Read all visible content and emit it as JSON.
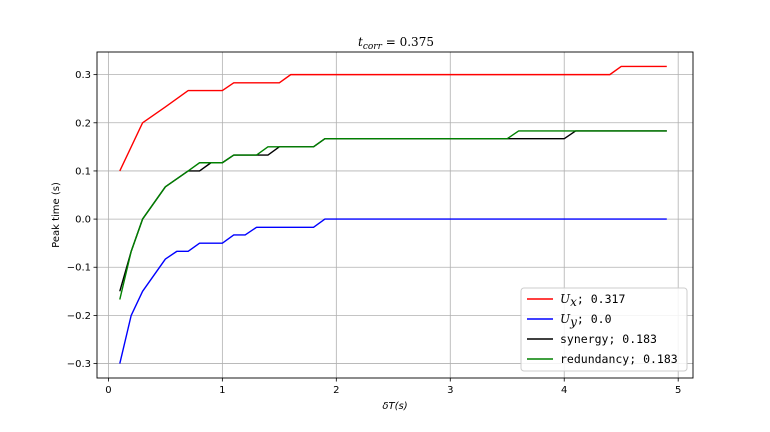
{
  "chart_data": {
    "type": "line",
    "title": "t_corr = 0.375",
    "title_main": "t",
    "title_sub": "corr",
    "title_rest": " = 0.375",
    "xlabel": "δT(s)",
    "ylabel": "Peak time (s)",
    "xlim": [
      -0.1,
      5.13
    ],
    "ylim": [
      -0.33,
      0.347
    ],
    "xticks": [
      0,
      1,
      2,
      3,
      4,
      5
    ],
    "yticks": [
      -0.3,
      -0.2,
      -0.1,
      0.0,
      0.1,
      0.2,
      0.3
    ],
    "xtick_labels": [
      "0",
      "1",
      "2",
      "3",
      "4",
      "5"
    ],
    "ytick_labels": [
      "−0.3",
      "−0.2",
      "−0.1",
      "0.0",
      "0.1",
      "0.2",
      "0.3"
    ],
    "grid": true,
    "legend_position": "lower-right",
    "series": [
      {
        "name": "U_x; 0.317",
        "legend_main": "U",
        "legend_sub": "x",
        "legend_rest": ";  0.317",
        "color": "#ff0000",
        "points": [
          [
            0.1,
            0.1
          ],
          [
            0.3,
            0.2
          ],
          [
            0.5,
            0.233
          ],
          [
            0.7,
            0.267
          ],
          [
            1.0,
            0.267
          ],
          [
            1.1,
            0.283
          ],
          [
            1.5,
            0.283
          ],
          [
            1.6,
            0.3
          ],
          [
            4.4,
            0.3
          ],
          [
            4.5,
            0.317
          ],
          [
            4.9,
            0.317
          ]
        ]
      },
      {
        "name": "U_y; 0.0",
        "legend_main": "U",
        "legend_sub": "y",
        "legend_rest": ";  0.0",
        "color": "#0000ff",
        "points": [
          [
            0.1,
            -0.3
          ],
          [
            0.2,
            -0.2
          ],
          [
            0.3,
            -0.15
          ],
          [
            0.5,
            -0.083
          ],
          [
            0.6,
            -0.067
          ],
          [
            0.7,
            -0.067
          ],
          [
            0.8,
            -0.05
          ],
          [
            1.0,
            -0.05
          ],
          [
            1.1,
            -0.033
          ],
          [
            1.2,
            -0.033
          ],
          [
            1.3,
            -0.017
          ],
          [
            1.8,
            -0.017
          ],
          [
            1.9,
            0.0
          ],
          [
            4.9,
            0.0
          ]
        ]
      },
      {
        "name": "synergy; 0.183",
        "legend_main": "synergy; 0.183",
        "color": "#000000",
        "points": [
          [
            0.1,
            -0.15
          ],
          [
            0.2,
            -0.067
          ],
          [
            0.3,
            0.0
          ],
          [
            0.5,
            0.067
          ],
          [
            0.7,
            0.1
          ],
          [
            0.8,
            0.1
          ],
          [
            0.9,
            0.117
          ],
          [
            1.0,
            0.117
          ],
          [
            1.1,
            0.133
          ],
          [
            1.4,
            0.133
          ],
          [
            1.5,
            0.15
          ],
          [
            1.8,
            0.15
          ],
          [
            1.9,
            0.167
          ],
          [
            4.0,
            0.167
          ],
          [
            4.1,
            0.183
          ],
          [
            4.9,
            0.183
          ]
        ]
      },
      {
        "name": "redundancy; 0.183",
        "legend_main": "redundancy; 0.183",
        "color": "#008000",
        "points": [
          [
            0.1,
            -0.167
          ],
          [
            0.2,
            -0.067
          ],
          [
            0.3,
            0.0
          ],
          [
            0.5,
            0.067
          ],
          [
            0.7,
            0.1
          ],
          [
            0.8,
            0.117
          ],
          [
            1.0,
            0.117
          ],
          [
            1.1,
            0.133
          ],
          [
            1.3,
            0.133
          ],
          [
            1.4,
            0.15
          ],
          [
            1.8,
            0.15
          ],
          [
            1.9,
            0.167
          ],
          [
            3.5,
            0.167
          ],
          [
            3.6,
            0.183
          ],
          [
            4.9,
            0.183
          ]
        ]
      }
    ]
  }
}
